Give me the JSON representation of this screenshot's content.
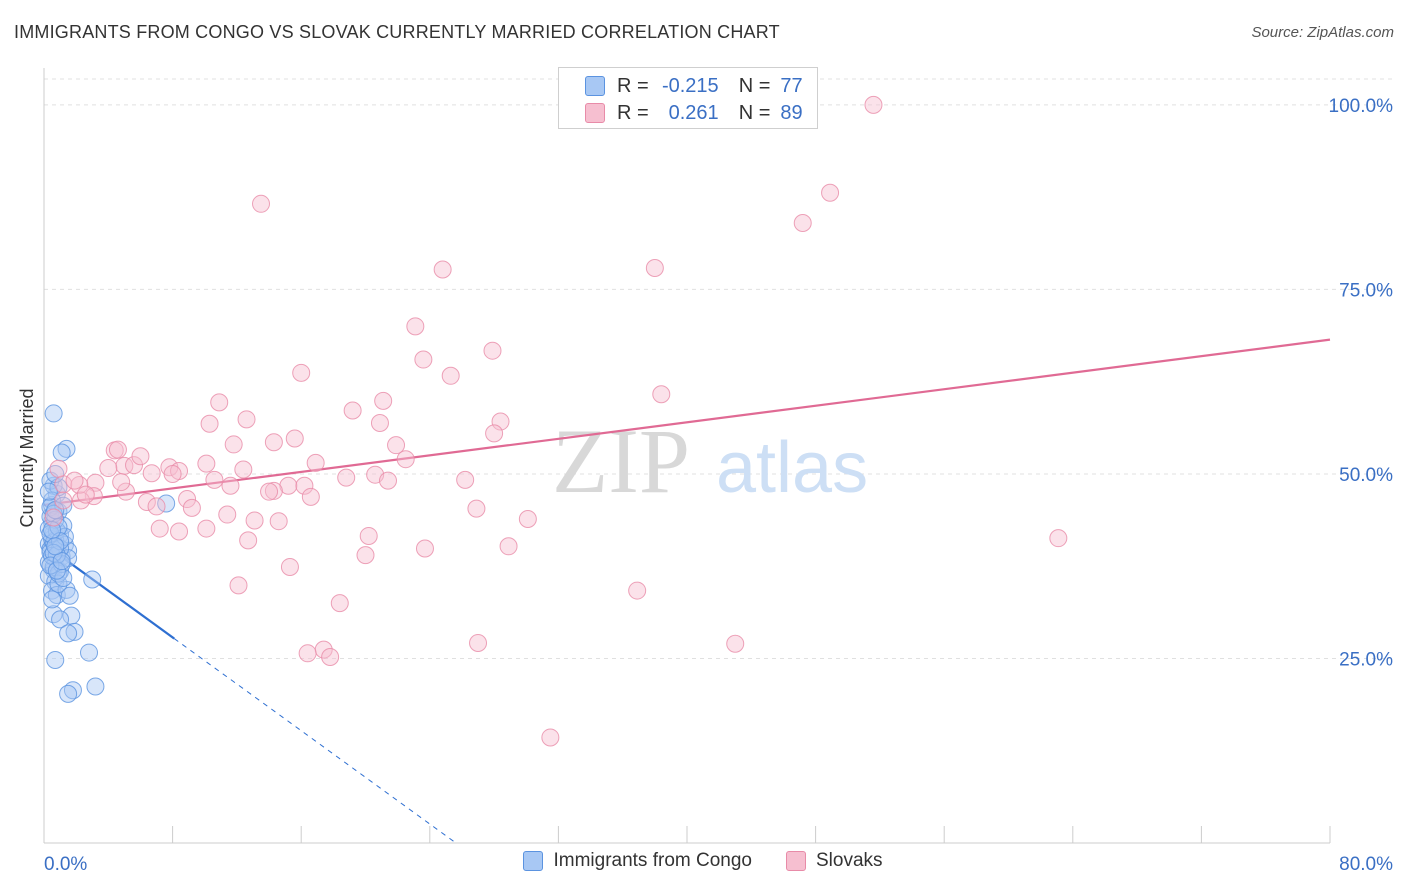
{
  "title": "IMMIGRANTS FROM CONGO VS SLOVAK CURRENTLY MARRIED CORRELATION CHART",
  "source": "Source: ZipAtlas.com",
  "watermark": {
    "zip": "ZIP",
    "atlas": "atlas"
  },
  "colors": {
    "congo_fill": "#a8c8f4",
    "congo_stroke": "#5b93e0",
    "congo_line": "#2e6fd1",
    "slovak_fill": "#f6bfd0",
    "slovak_stroke": "#e88ba8",
    "slovak_line": "#e06a94",
    "axis_text": "#3a6fc4",
    "grid": "#e0e0e0"
  },
  "legend_box": {
    "rows": [
      {
        "r_label": "R =",
        "r_value": "-0.215",
        "n_label": "N =",
        "n_value": "77",
        "series": "congo"
      },
      {
        "r_label": "R =",
        "r_value": "0.261",
        "n_label": "N =",
        "n_value": "89",
        "series": "slovak"
      }
    ]
  },
  "legend_bottom": [
    {
      "label": "Immigrants from Congo",
      "series": "congo"
    },
    {
      "label": "Slovaks",
      "series": "slovak"
    }
  ],
  "chart_data": {
    "type": "scatter",
    "title": "IMMIGRANTS FROM CONGO VS SLOVAK CURRENTLY MARRIED CORRELATION CHART",
    "xlabel": "",
    "ylabel": "Currently Married",
    "xlim": [
      0,
      80
    ],
    "ylim": [
      0,
      105
    ],
    "x_tick_labels": [
      "0.0%",
      "80.0%"
    ],
    "y_ticks": [
      25,
      50,
      75,
      100
    ],
    "y_tick_labels": [
      "25.0%",
      "50.0%",
      "75.0%",
      "100.0%"
    ],
    "grid": true,
    "series": [
      {
        "name": "Immigrants from Congo",
        "key": "congo",
        "trend": {
          "x0": 0,
          "y0": 40.5,
          "x1": 8.1,
          "y1": 27.7,
          "dash_to_x": 25.6
        },
        "points": [
          [
            0.3,
            40.5
          ],
          [
            0.5,
            41.2
          ],
          [
            0.4,
            39.8
          ],
          [
            0.6,
            42.0
          ],
          [
            0.7,
            38.5
          ],
          [
            0.8,
            40.1
          ],
          [
            0.5,
            43.5
          ],
          [
            0.9,
            39.2
          ],
          [
            1.0,
            41.8
          ],
          [
            0.6,
            37.0
          ],
          [
            0.4,
            44.2
          ],
          [
            1.1,
            38.8
          ],
          [
            0.3,
            36.2
          ],
          [
            0.7,
            35.4
          ],
          [
            1.3,
            40.4
          ],
          [
            0.5,
            45.8
          ],
          [
            0.8,
            47.3
          ],
          [
            0.6,
            48.4
          ],
          [
            0.4,
            49.1
          ],
          [
            0.9,
            44.9
          ],
          [
            1.2,
            43.0
          ],
          [
            0.3,
            42.6
          ],
          [
            0.7,
            41.0
          ],
          [
            1.5,
            39.6
          ],
          [
            0.5,
            34.2
          ],
          [
            1.0,
            36.8
          ],
          [
            0.8,
            33.6
          ],
          [
            1.4,
            34.3
          ],
          [
            1.6,
            33.5
          ],
          [
            0.6,
            31.0
          ],
          [
            1.7,
            30.8
          ],
          [
            1.0,
            30.3
          ],
          [
            1.9,
            28.6
          ],
          [
            1.5,
            28.4
          ],
          [
            2.8,
            25.8
          ],
          [
            0.7,
            24.8
          ],
          [
            3.2,
            21.2
          ],
          [
            1.8,
            20.7
          ],
          [
            1.5,
            20.2
          ],
          [
            0.6,
            58.2
          ],
          [
            1.4,
            53.4
          ],
          [
            1.1,
            52.9
          ],
          [
            0.9,
            48.2
          ],
          [
            0.5,
            46.4
          ],
          [
            0.4,
            45.5
          ],
          [
            1.2,
            45.7
          ],
          [
            0.7,
            50.0
          ],
          [
            0.3,
            38.0
          ],
          [
            1.5,
            38.6
          ],
          [
            0.6,
            37.4
          ],
          [
            0.9,
            35.1
          ],
          [
            3.0,
            35.7
          ],
          [
            7.6,
            46.0
          ],
          [
            0.4,
            39.4
          ],
          [
            0.6,
            40.7
          ],
          [
            0.8,
            42.3
          ],
          [
            1.0,
            39.9
          ],
          [
            1.3,
            41.5
          ],
          [
            0.5,
            38.9
          ],
          [
            0.7,
            43.8
          ],
          [
            0.9,
            36.5
          ],
          [
            1.1,
            37.8
          ],
          [
            0.4,
            41.9
          ],
          [
            0.6,
            44.6
          ],
          [
            0.8,
            39.0
          ],
          [
            1.2,
            35.9
          ],
          [
            0.5,
            33.0
          ],
          [
            0.3,
            47.6
          ],
          [
            0.7,
            45.1
          ],
          [
            0.9,
            42.8
          ],
          [
            1.0,
            40.9
          ],
          [
            0.6,
            39.3
          ],
          [
            0.4,
            37.6
          ],
          [
            0.8,
            36.9
          ],
          [
            1.1,
            38.2
          ],
          [
            0.5,
            42.4
          ],
          [
            0.7,
            40.2
          ]
        ]
      },
      {
        "name": "Slovaks",
        "key": "slovak",
        "trend": {
          "x0": 0,
          "y0": 45.8,
          "x1": 80,
          "y1": 68.2
        },
        "points": [
          [
            51.6,
            100.0
          ],
          [
            13.5,
            86.6
          ],
          [
            48.9,
            88.1
          ],
          [
            47.2,
            84.0
          ],
          [
            38.0,
            77.9
          ],
          [
            24.8,
            77.7
          ],
          [
            23.1,
            70.0
          ],
          [
            27.9,
            66.7
          ],
          [
            23.6,
            65.5
          ],
          [
            25.3,
            63.3
          ],
          [
            16.0,
            63.7
          ],
          [
            38.4,
            60.8
          ],
          [
            10.9,
            59.7
          ],
          [
            21.1,
            59.9
          ],
          [
            19.2,
            58.6
          ],
          [
            12.6,
            57.4
          ],
          [
            28.4,
            57.1
          ],
          [
            10.3,
            56.8
          ],
          [
            20.9,
            56.9
          ],
          [
            15.6,
            54.8
          ],
          [
            28.0,
            55.5
          ],
          [
            21.9,
            53.9
          ],
          [
            14.3,
            54.3
          ],
          [
            11.8,
            54.0
          ],
          [
            4.4,
            53.2
          ],
          [
            4.6,
            53.3
          ],
          [
            16.9,
            51.5
          ],
          [
            10.1,
            51.4
          ],
          [
            5.0,
            51.1
          ],
          [
            5.6,
            51.2
          ],
          [
            7.8,
            50.9
          ],
          [
            4.0,
            50.8
          ],
          [
            8.4,
            50.4
          ],
          [
            8.0,
            50.0
          ],
          [
            6.7,
            50.1
          ],
          [
            20.6,
            49.9
          ],
          [
            21.4,
            49.1
          ],
          [
            26.2,
            49.2
          ],
          [
            1.2,
            48.6
          ],
          [
            3.2,
            48.8
          ],
          [
            2.2,
            48.5
          ],
          [
            10.6,
            49.2
          ],
          [
            11.6,
            48.4
          ],
          [
            15.2,
            48.4
          ],
          [
            16.2,
            48.4
          ],
          [
            14.3,
            47.7
          ],
          [
            14.0,
            47.6
          ],
          [
            3.1,
            47.0
          ],
          [
            5.1,
            47.6
          ],
          [
            8.9,
            46.6
          ],
          [
            16.6,
            46.9
          ],
          [
            6.4,
            46.2
          ],
          [
            2.3,
            46.4
          ],
          [
            1.2,
            46.4
          ],
          [
            26.9,
            45.3
          ],
          [
            7.0,
            45.6
          ],
          [
            11.4,
            44.5
          ],
          [
            0.6,
            44.1
          ],
          [
            13.1,
            43.7
          ],
          [
            14.6,
            43.6
          ],
          [
            10.1,
            42.6
          ],
          [
            7.2,
            42.6
          ],
          [
            8.4,
            42.2
          ],
          [
            20.2,
            41.6
          ],
          [
            12.7,
            41.0
          ],
          [
            63.1,
            41.3
          ],
          [
            23.7,
            39.9
          ],
          [
            28.9,
            40.2
          ],
          [
            20.0,
            39.0
          ],
          [
            15.3,
            37.4
          ],
          [
            12.1,
            34.9
          ],
          [
            36.9,
            34.2
          ],
          [
            18.4,
            32.5
          ],
          [
            27.0,
            27.1
          ],
          [
            43.0,
            27.0
          ],
          [
            17.4,
            26.2
          ],
          [
            16.4,
            25.7
          ],
          [
            17.8,
            25.2
          ],
          [
            31.5,
            14.3
          ],
          [
            0.9,
            50.7
          ],
          [
            1.9,
            49.1
          ],
          [
            2.6,
            47.2
          ],
          [
            4.8,
            48.9
          ],
          [
            6.0,
            52.4
          ],
          [
            9.2,
            45.4
          ],
          [
            12.4,
            50.6
          ],
          [
            18.8,
            49.5
          ],
          [
            22.5,
            52.0
          ],
          [
            30.1,
            43.9
          ]
        ]
      }
    ]
  }
}
